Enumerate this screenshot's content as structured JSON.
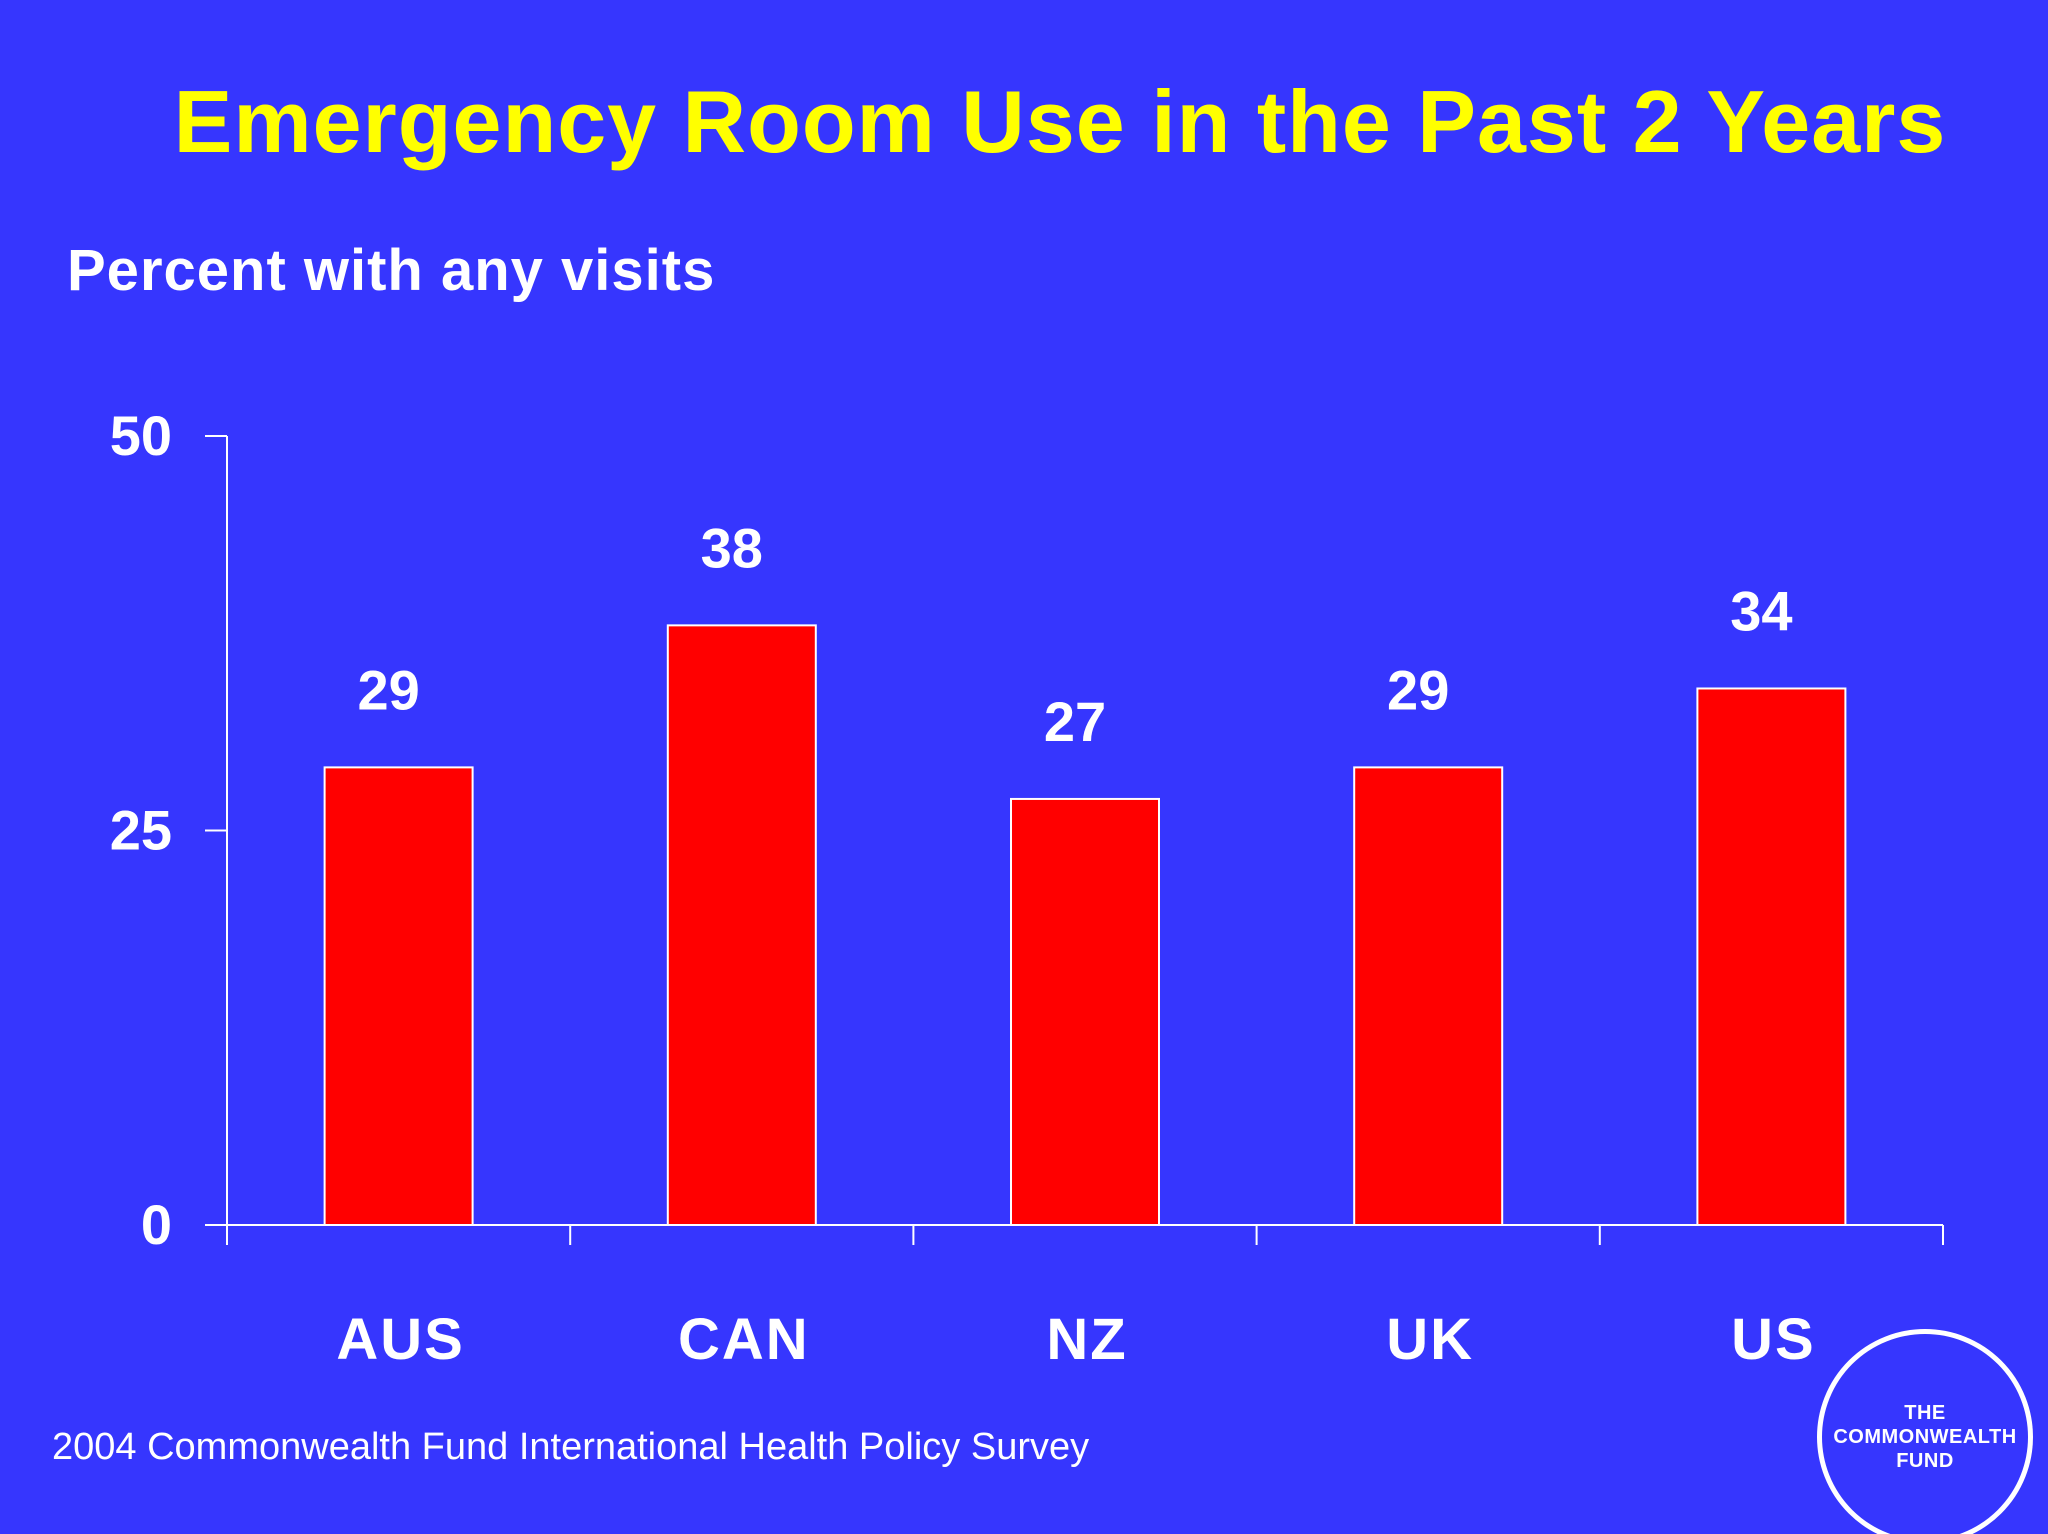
{
  "slide": {
    "title": "Emergency Room Use in the Past 2 Years",
    "subtitle": "Percent with any visits",
    "source": "2004 Commonwealth Fund International Health Policy Survey",
    "logo_text": "THE\nCOMMONWEALTH\nFUND"
  },
  "colors": {
    "background": "#3636fe",
    "title": "#ffff00",
    "bar": "#ff0000",
    "text": "#ffffff",
    "axis": "#ffffff"
  },
  "chart_data": {
    "type": "bar",
    "title": "Emergency Room Use in the Past 2 Years",
    "ylabel": "Percent with any visits",
    "xlabel": "",
    "categories": [
      "AUS",
      "CAN",
      "NZ",
      "UK",
      "US"
    ],
    "values": [
      29,
      38,
      27,
      29,
      34
    ],
    "data_labels": [
      "29",
      "38",
      "27",
      "29",
      "34"
    ],
    "ylim": [
      0,
      50
    ],
    "yticks": [
      0,
      25,
      50
    ],
    "grid": false,
    "legend": "none"
  }
}
